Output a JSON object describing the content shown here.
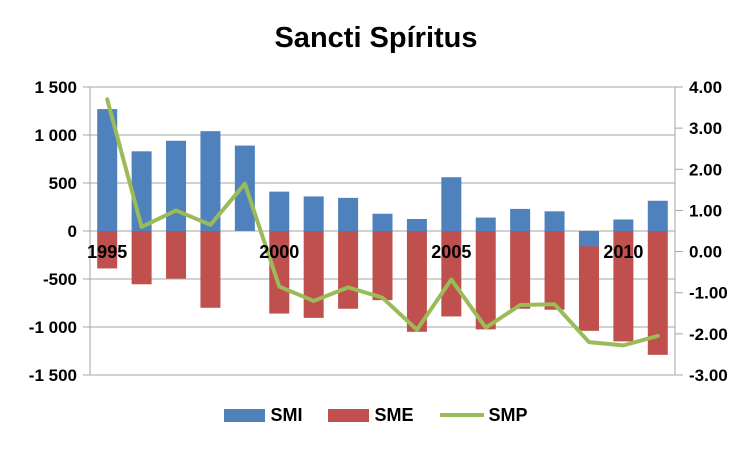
{
  "title": "Sancti Spíritus",
  "chart_data": {
    "type": "bar",
    "subtype": "combo-bar-line-dual-axis",
    "title": "Sancti Spíritus",
    "categories": [
      "1995",
      "1996",
      "1997",
      "1998",
      "1999",
      "2000",
      "2001",
      "2002",
      "2003",
      "2004",
      "2005",
      "2006",
      "2007",
      "2008",
      "2009",
      "2010",
      "2011"
    ],
    "x_visible_labels": [
      {
        "index": 0,
        "text": "1995"
      },
      {
        "index": 5,
        "text": "2000"
      },
      {
        "index": 10,
        "text": "2005"
      },
      {
        "index": 15,
        "text": "2010"
      }
    ],
    "series": [
      {
        "name": "SMI",
        "type": "bar",
        "axis": "left",
        "color": "#4F81BD",
        "values": [
          1270,
          830,
          940,
          1040,
          890,
          410,
          360,
          345,
          180,
          125,
          560,
          140,
          230,
          205,
          -160,
          120,
          315
        ]
      },
      {
        "name": "SME",
        "type": "bar",
        "axis": "left",
        "color": "#C0504D",
        "values": [
          -390,
          -555,
          -495,
          -800,
          null,
          -860,
          -905,
          -810,
          -720,
          -1050,
          -890,
          -1025,
          -810,
          -820,
          -1040,
          -1150,
          -1290
        ]
      },
      {
        "name": "SMP",
        "type": "line",
        "axis": "right",
        "color": "#9BBB59",
        "values": [
          3.7,
          0.6,
          1.0,
          0.65,
          1.65,
          -0.85,
          -1.2,
          -0.87,
          -1.12,
          -1.9,
          -0.68,
          -1.85,
          -1.3,
          -1.28,
          -2.2,
          -2.28,
          -2.05
        ]
      }
    ],
    "left_axis": {
      "min": -1500,
      "max": 1500,
      "step": 500,
      "tick_labels": [
        "1 500",
        "1 000",
        "500",
        "0",
        "-500",
        "-1 000",
        "-1 500"
      ],
      "tick_values": [
        1500,
        1000,
        500,
        0,
        -500,
        -1000,
        -1500
      ]
    },
    "right_axis": {
      "min": -3,
      "max": 4,
      "step": 1,
      "tick_labels": [
        "4.00",
        "3.00",
        "2.00",
        "1.00",
        "0.00",
        "-1.00",
        "-2.00",
        "-3.00"
      ],
      "tick_values": [
        4,
        3,
        2,
        1,
        0,
        -1,
        -2,
        -3
      ]
    },
    "legend": {
      "position": "bottom",
      "entries": [
        "SMI",
        "SME",
        "SMP"
      ]
    },
    "grid": "horizontal-on-left-axis-ticks",
    "colors": {
      "smi_bar": "#4F81BD",
      "sme_bar": "#C0504D",
      "smp_line": "#9BBB59",
      "gridline": "#A6A6A6",
      "axis_line": "#A6A6A6",
      "text": "#000000",
      "background": "#FFFFFF"
    }
  }
}
